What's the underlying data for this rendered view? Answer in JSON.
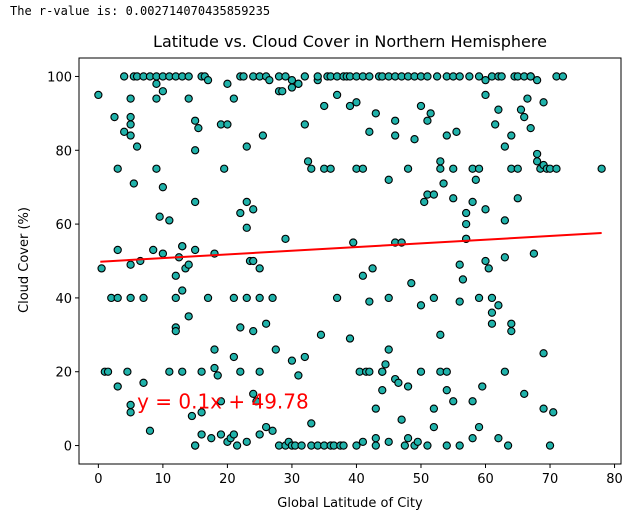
{
  "output_text": "The r-value is: 0.002714070435859235",
  "chart_data": {
    "type": "scatter",
    "title": "Latitude vs. Cloud Cover in Northern Hemisphere",
    "xlabel": "Global Latitude of City",
    "ylabel": "Cloud Cover (%)",
    "xlim": [
      -3,
      81
    ],
    "ylim": [
      -5,
      105
    ],
    "xticks": [
      0,
      10,
      20,
      30,
      40,
      50,
      60,
      70,
      80
    ],
    "yticks": [
      0,
      20,
      40,
      60,
      80,
      100
    ],
    "grid": false,
    "marker_color": "#20b2aa",
    "marker_edge": "#000000",
    "regression": {
      "slope": 0.1,
      "intercept": 49.78,
      "x_range": [
        0.3,
        78
      ],
      "color": "#ff0000",
      "equation_label": "y = 0.1x + 49.78",
      "label_at": [
        6,
        10
      ]
    },
    "points": [
      [
        0,
        95
      ],
      [
        0.5,
        48
      ],
      [
        1,
        20
      ],
      [
        1.5,
        20
      ],
      [
        2,
        40
      ],
      [
        2.5,
        89
      ],
      [
        3,
        40
      ],
      [
        3,
        53
      ],
      [
        3,
        75
      ],
      [
        3,
        16
      ],
      [
        4,
        85
      ],
      [
        4,
        100
      ],
      [
        4.5,
        20
      ],
      [
        5,
        84
      ],
      [
        5,
        87
      ],
      [
        5,
        89
      ],
      [
        5,
        9
      ],
      [
        5,
        11
      ],
      [
        5,
        40
      ],
      [
        5,
        49
      ],
      [
        5,
        94
      ],
      [
        5.5,
        71
      ],
      [
        5.5,
        100
      ],
      [
        6,
        81
      ],
      [
        6,
        100
      ],
      [
        6.5,
        50
      ],
      [
        7,
        40
      ],
      [
        7,
        17
      ],
      [
        7,
        100
      ],
      [
        8,
        100
      ],
      [
        8,
        4
      ],
      [
        8.5,
        53
      ],
      [
        9,
        100
      ],
      [
        9,
        98
      ],
      [
        9,
        75
      ],
      [
        9,
        94
      ],
      [
        9.5,
        62
      ],
      [
        10,
        96
      ],
      [
        10,
        70
      ],
      [
        10,
        52
      ],
      [
        10,
        100
      ],
      [
        11,
        61
      ],
      [
        11,
        20
      ],
      [
        11,
        100
      ],
      [
        12,
        100
      ],
      [
        12,
        46
      ],
      [
        12,
        32
      ],
      [
        12,
        31
      ],
      [
        12,
        40
      ],
      [
        12.5,
        51
      ],
      [
        13,
        100
      ],
      [
        13,
        54
      ],
      [
        13,
        42
      ],
      [
        13,
        54
      ],
      [
        13,
        20
      ],
      [
        13.5,
        48
      ],
      [
        14,
        100
      ],
      [
        14,
        94
      ],
      [
        14,
        35
      ],
      [
        14,
        49
      ],
      [
        14.5,
        8
      ],
      [
        15,
        80
      ],
      [
        15,
        66
      ],
      [
        15,
        0
      ],
      [
        15,
        0
      ],
      [
        15,
        88
      ],
      [
        15,
        53
      ],
      [
        15.5,
        86
      ],
      [
        16,
        100
      ],
      [
        16,
        9
      ],
      [
        16,
        20
      ],
      [
        16,
        3
      ],
      [
        16.5,
        100
      ],
      [
        17,
        40
      ],
      [
        17,
        99
      ],
      [
        17.5,
        2
      ],
      [
        18,
        26
      ],
      [
        18,
        21
      ],
      [
        18,
        52
      ],
      [
        18.5,
        19
      ],
      [
        19,
        12
      ],
      [
        19,
        3
      ],
      [
        19,
        87
      ],
      [
        19.5,
        75
      ],
      [
        20,
        98
      ],
      [
        20,
        1
      ],
      [
        20,
        87
      ],
      [
        20.5,
        2
      ],
      [
        21,
        94
      ],
      [
        21,
        24
      ],
      [
        21,
        40
      ],
      [
        21,
        3
      ],
      [
        21.5,
        0
      ],
      [
        22,
        20
      ],
      [
        22,
        32
      ],
      [
        22,
        63
      ],
      [
        22,
        100
      ],
      [
        22.5,
        100
      ],
      [
        23,
        66
      ],
      [
        23,
        59
      ],
      [
        23,
        81
      ],
      [
        23,
        1
      ],
      [
        23,
        40
      ],
      [
        23.5,
        50
      ],
      [
        24,
        100
      ],
      [
        24,
        31
      ],
      [
        24,
        64
      ],
      [
        24,
        14
      ],
      [
        24,
        50
      ],
      [
        24.5,
        12
      ],
      [
        25,
        100
      ],
      [
        25,
        40
      ],
      [
        25,
        3
      ],
      [
        25,
        20
      ],
      [
        25,
        48
      ],
      [
        25.5,
        84
      ],
      [
        26,
        100
      ],
      [
        26,
        33
      ],
      [
        26,
        5
      ],
      [
        26.5,
        99
      ],
      [
        27,
        40
      ],
      [
        27,
        4
      ],
      [
        27.5,
        26
      ],
      [
        28,
        96
      ],
      [
        28,
        0
      ],
      [
        28,
        100
      ],
      [
        28.5,
        96
      ],
      [
        29,
        0
      ],
      [
        29,
        56
      ],
      [
        29,
        100
      ],
      [
        29.5,
        1
      ],
      [
        30,
        99
      ],
      [
        30,
        23
      ],
      [
        30,
        0
      ],
      [
        30,
        97
      ],
      [
        30.5,
        0
      ],
      [
        31,
        98
      ],
      [
        31,
        19
      ],
      [
        31,
        98
      ],
      [
        31.5,
        0
      ],
      [
        32,
        24
      ],
      [
        32,
        87
      ],
      [
        32,
        100
      ],
      [
        32.5,
        77
      ],
      [
        33,
        75
      ],
      [
        33,
        0
      ],
      [
        33,
        6
      ],
      [
        34,
        99
      ],
      [
        34,
        100
      ],
      [
        34,
        0
      ],
      [
        34.5,
        30
      ],
      [
        35,
        75
      ],
      [
        35,
        92
      ],
      [
        35,
        0
      ],
      [
        35.5,
        100
      ],
      [
        36,
        75
      ],
      [
        36,
        100
      ],
      [
        36,
        0
      ],
      [
        36.5,
        0
      ],
      [
        37,
        95
      ],
      [
        37,
        100
      ],
      [
        37,
        40
      ],
      [
        37.5,
        0
      ],
      [
        38,
        100
      ],
      [
        38,
        0
      ],
      [
        38.5,
        100
      ],
      [
        39,
        92
      ],
      [
        39,
        29
      ],
      [
        39,
        100
      ],
      [
        39.5,
        55
      ],
      [
        40,
        75
      ],
      [
        40,
        93
      ],
      [
        40,
        0
      ],
      [
        40,
        100
      ],
      [
        40.5,
        20
      ],
      [
        41,
        1
      ],
      [
        41,
        75
      ],
      [
        41,
        46
      ],
      [
        41,
        100
      ],
      [
        41.5,
        20
      ],
      [
        42,
        85
      ],
      [
        42,
        39
      ],
      [
        42,
        20
      ],
      [
        42,
        100
      ],
      [
        42.5,
        48
      ],
      [
        43,
        0
      ],
      [
        43,
        90
      ],
      [
        43,
        2
      ],
      [
        43,
        10
      ],
      [
        43.5,
        100
      ],
      [
        44,
        15
      ],
      [
        44,
        20
      ],
      [
        44,
        20
      ],
      [
        44,
        100
      ],
      [
        44.5,
        22
      ],
      [
        45,
        72
      ],
      [
        45,
        100
      ],
      [
        45,
        26
      ],
      [
        45,
        40
      ],
      [
        45,
        1
      ],
      [
        46,
        84
      ],
      [
        46,
        55
      ],
      [
        46,
        100
      ],
      [
        46,
        18
      ],
      [
        46,
        88
      ],
      [
        46.5,
        17
      ],
      [
        47,
        55
      ],
      [
        47,
        100
      ],
      [
        47,
        7
      ],
      [
        47.5,
        0
      ],
      [
        48,
        100
      ],
      [
        48,
        16
      ],
      [
        48,
        2
      ],
      [
        48,
        75
      ],
      [
        48.5,
        44
      ],
      [
        49,
        100
      ],
      [
        49,
        83
      ],
      [
        49,
        0
      ],
      [
        49.5,
        1
      ],
      [
        50,
        100
      ],
      [
        50,
        92
      ],
      [
        50,
        38
      ],
      [
        50,
        20
      ],
      [
        50.5,
        66
      ],
      [
        51,
        0
      ],
      [
        51,
        68
      ],
      [
        51,
        88
      ],
      [
        51,
        100
      ],
      [
        51.5,
        90
      ],
      [
        52,
        5
      ],
      [
        52,
        68
      ],
      [
        52,
        40
      ],
      [
        52,
        10
      ],
      [
        52.5,
        100
      ],
      [
        53,
        77
      ],
      [
        53,
        75
      ],
      [
        53,
        30
      ],
      [
        53,
        20
      ],
      [
        53.5,
        71
      ],
      [
        54,
        0
      ],
      [
        54,
        15
      ],
      [
        54,
        84
      ],
      [
        54,
        100
      ],
      [
        54,
        20
      ],
      [
        55,
        75
      ],
      [
        55,
        100
      ],
      [
        55,
        12
      ],
      [
        55,
        67
      ],
      [
        55.5,
        85
      ],
      [
        56,
        39
      ],
      [
        56,
        49
      ],
      [
        56,
        100
      ],
      [
        56,
        0
      ],
      [
        56.5,
        45
      ],
      [
        57,
        63
      ],
      [
        57,
        60
      ],
      [
        57,
        56
      ],
      [
        57,
        56
      ],
      [
        57.5,
        100
      ],
      [
        58,
        66
      ],
      [
        58,
        75
      ],
      [
        58,
        12
      ],
      [
        58,
        2
      ],
      [
        58.5,
        72
      ],
      [
        59,
        100
      ],
      [
        59,
        75
      ],
      [
        59,
        5
      ],
      [
        59,
        40
      ],
      [
        59.5,
        16
      ],
      [
        60,
        99
      ],
      [
        60,
        95
      ],
      [
        60,
        64
      ],
      [
        60,
        50
      ],
      [
        60.5,
        48
      ],
      [
        61,
        36
      ],
      [
        61,
        100
      ],
      [
        61,
        40
      ],
      [
        61,
        33
      ],
      [
        61.5,
        87
      ],
      [
        62,
        91
      ],
      [
        62,
        100
      ],
      [
        62,
        2
      ],
      [
        62,
        38
      ],
      [
        62.5,
        100
      ],
      [
        63,
        20
      ],
      [
        63,
        81
      ],
      [
        63,
        61
      ],
      [
        63,
        51
      ],
      [
        63.5,
        0
      ],
      [
        64,
        75
      ],
      [
        64,
        84
      ],
      [
        64,
        33
      ],
      [
        64,
        31
      ],
      [
        64.5,
        100
      ],
      [
        65,
        100
      ],
      [
        65,
        67
      ],
      [
        65,
        75
      ],
      [
        65.5,
        91
      ],
      [
        66,
        89
      ],
      [
        66,
        100
      ],
      [
        66,
        14
      ],
      [
        66.5,
        94
      ],
      [
        67,
        86
      ],
      [
        67,
        100
      ],
      [
        67,
        100
      ],
      [
        67.5,
        52
      ],
      [
        68,
        79
      ],
      [
        68,
        99
      ],
      [
        68,
        77
      ],
      [
        68.5,
        75
      ],
      [
        69,
        76
      ],
      [
        69,
        93
      ],
      [
        69,
        25
      ],
      [
        69,
        10
      ],
      [
        69.5,
        75
      ],
      [
        70,
        0
      ],
      [
        70,
        75
      ],
      [
        70.5,
        9
      ],
      [
        71,
        100
      ],
      [
        71,
        75
      ],
      [
        72,
        100
      ],
      [
        78,
        75
      ]
    ]
  }
}
